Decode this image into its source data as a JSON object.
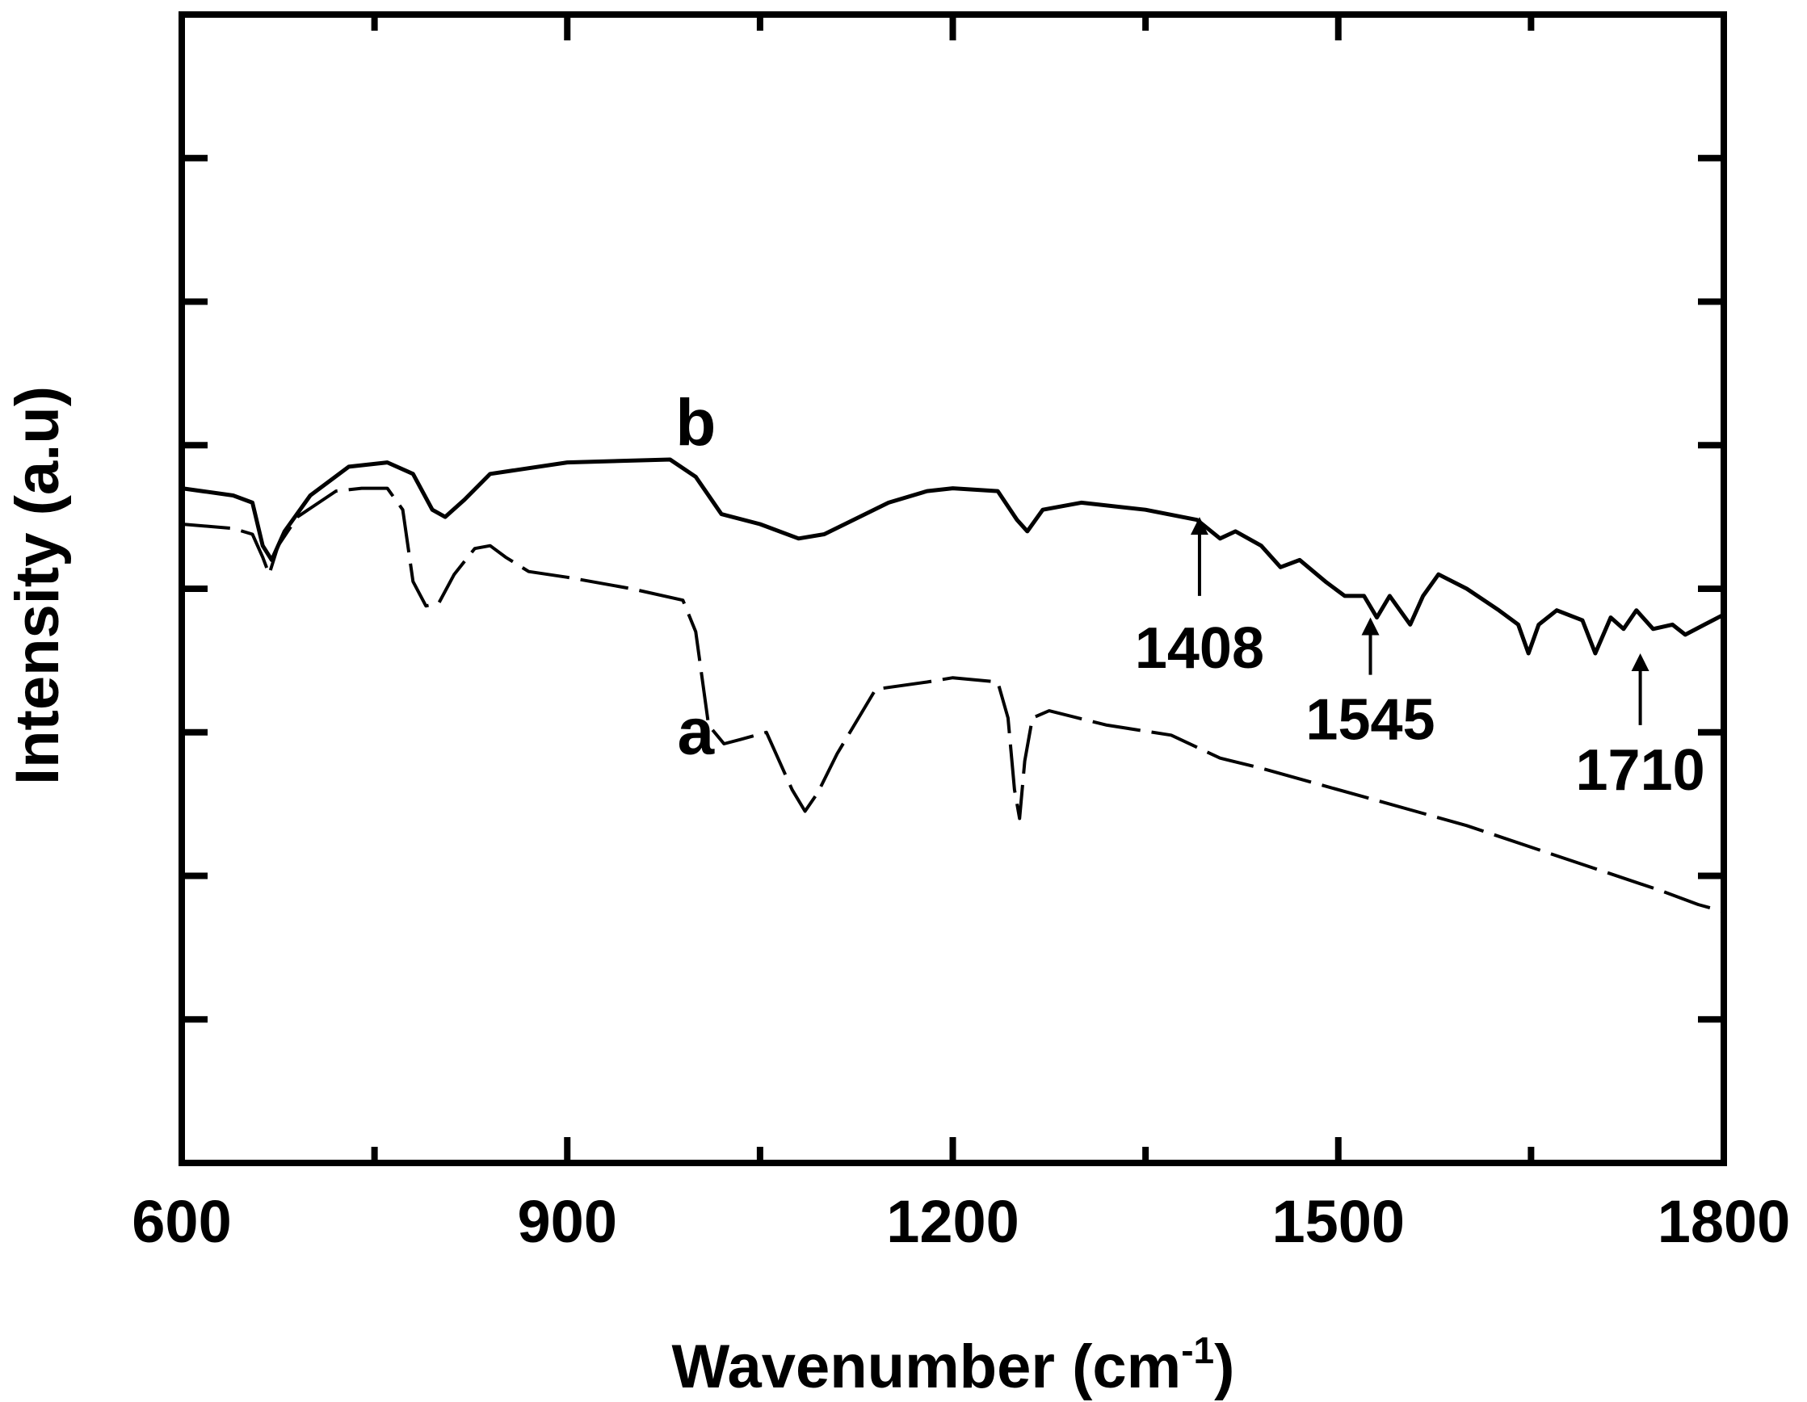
{
  "chart_data": {
    "type": "line",
    "xlabel": "Wavenumber  (cm",
    "xlabel_sup": "-1",
    "xlabel_close": ")",
    "ylabel": "Intensity (a.u)",
    "xlim": [
      600,
      1800
    ],
    "ylim": [
      0,
      8
    ],
    "x_ticks": [
      600,
      900,
      1200,
      1500,
      1800
    ],
    "x_tick_labels": [
      "600",
      "900",
      "1200",
      "1500",
      "1800"
    ],
    "y_tick_labels_shown": false,
    "grid": false,
    "series": [
      {
        "name": "a",
        "style": "dashed",
        "points": [
          [
            600,
            4.45
          ],
          [
            640,
            4.42
          ],
          [
            655,
            4.38
          ],
          [
            663,
            4.22
          ],
          [
            668,
            4.1
          ],
          [
            675,
            4.3
          ],
          [
            690,
            4.5
          ],
          [
            720,
            4.68
          ],
          [
            740,
            4.7
          ],
          [
            760,
            4.7
          ],
          [
            772,
            4.55
          ],
          [
            780,
            4.05
          ],
          [
            790,
            3.88
          ],
          [
            800,
            3.9
          ],
          [
            812,
            4.1
          ],
          [
            828,
            4.28
          ],
          [
            840,
            4.3
          ],
          [
            852,
            4.22
          ],
          [
            870,
            4.12
          ],
          [
            900,
            4.08
          ],
          [
            950,
            4.0
          ],
          [
            990,
            3.92
          ],
          [
            1000,
            3.7
          ],
          [
            1010,
            3.05
          ],
          [
            1022,
            2.92
          ],
          [
            1035,
            2.95
          ],
          [
            1055,
            3.0
          ],
          [
            1075,
            2.6
          ],
          [
            1085,
            2.45
          ],
          [
            1095,
            2.58
          ],
          [
            1110,
            2.85
          ],
          [
            1140,
            3.3
          ],
          [
            1180,
            3.35
          ],
          [
            1200,
            3.38
          ],
          [
            1235,
            3.35
          ],
          [
            1243,
            3.1
          ],
          [
            1248,
            2.6
          ],
          [
            1252,
            2.4
          ],
          [
            1256,
            2.8
          ],
          [
            1262,
            3.1
          ],
          [
            1275,
            3.15
          ],
          [
            1320,
            3.05
          ],
          [
            1370,
            2.98
          ],
          [
            1408,
            2.82
          ],
          [
            1440,
            2.75
          ],
          [
            1480,
            2.65
          ],
          [
            1520,
            2.55
          ],
          [
            1560,
            2.45
          ],
          [
            1600,
            2.35
          ],
          [
            1650,
            2.2
          ],
          [
            1700,
            2.05
          ],
          [
            1750,
            1.9
          ],
          [
            1780,
            1.8
          ],
          [
            1800,
            1.75
          ]
        ]
      },
      {
        "name": "b",
        "style": "solid",
        "points": [
          [
            600,
            4.7
          ],
          [
            640,
            4.65
          ],
          [
            655,
            4.6
          ],
          [
            663,
            4.3
          ],
          [
            670,
            4.2
          ],
          [
            680,
            4.4
          ],
          [
            700,
            4.65
          ],
          [
            730,
            4.85
          ],
          [
            760,
            4.88
          ],
          [
            780,
            4.8
          ],
          [
            795,
            4.55
          ],
          [
            805,
            4.5
          ],
          [
            820,
            4.62
          ],
          [
            840,
            4.8
          ],
          [
            900,
            4.88
          ],
          [
            980,
            4.9
          ],
          [
            1000,
            4.78
          ],
          [
            1020,
            4.52
          ],
          [
            1050,
            4.45
          ],
          [
            1080,
            4.35
          ],
          [
            1100,
            4.38
          ],
          [
            1150,
            4.6
          ],
          [
            1180,
            4.68
          ],
          [
            1200,
            4.7
          ],
          [
            1235,
            4.68
          ],
          [
            1250,
            4.48
          ],
          [
            1258,
            4.4
          ],
          [
            1270,
            4.55
          ],
          [
            1300,
            4.6
          ],
          [
            1350,
            4.55
          ],
          [
            1390,
            4.48
          ],
          [
            1408,
            4.35
          ],
          [
            1420,
            4.4
          ],
          [
            1440,
            4.3
          ],
          [
            1455,
            4.15
          ],
          [
            1470,
            4.2
          ],
          [
            1490,
            4.05
          ],
          [
            1505,
            3.95
          ],
          [
            1520,
            3.95
          ],
          [
            1530,
            3.8
          ],
          [
            1540,
            3.95
          ],
          [
            1548,
            3.85
          ],
          [
            1556,
            3.75
          ],
          [
            1566,
            3.95
          ],
          [
            1578,
            4.1
          ],
          [
            1600,
            4.0
          ],
          [
            1625,
            3.85
          ],
          [
            1640,
            3.75
          ],
          [
            1648,
            3.55
          ],
          [
            1656,
            3.75
          ],
          [
            1670,
            3.85
          ],
          [
            1690,
            3.78
          ],
          [
            1700,
            3.55
          ],
          [
            1712,
            3.8
          ],
          [
            1722,
            3.72
          ],
          [
            1732,
            3.85
          ],
          [
            1745,
            3.72
          ],
          [
            1760,
            3.75
          ],
          [
            1770,
            3.68
          ],
          [
            1785,
            3.75
          ],
          [
            1800,
            3.82
          ]
        ]
      }
    ],
    "series_labels": [
      {
        "text": "a",
        "x": 1000,
        "y": 2.85
      },
      {
        "text": "b",
        "x": 1000,
        "y": 5.0
      }
    ],
    "annotations": [
      {
        "text": "1408",
        "x": 1392,
        "arrow_top_y": 4.5,
        "arrow_bottom_y": 3.95,
        "label_y": 3.45
      },
      {
        "text": "1545",
        "x": 1525,
        "arrow_top_y": 3.8,
        "arrow_bottom_y": 3.4,
        "label_y": 2.95
      },
      {
        "text": "1710",
        "x": 1735,
        "arrow_top_y": 3.55,
        "arrow_bottom_y": 3.05,
        "label_y": 2.6
      }
    ]
  }
}
